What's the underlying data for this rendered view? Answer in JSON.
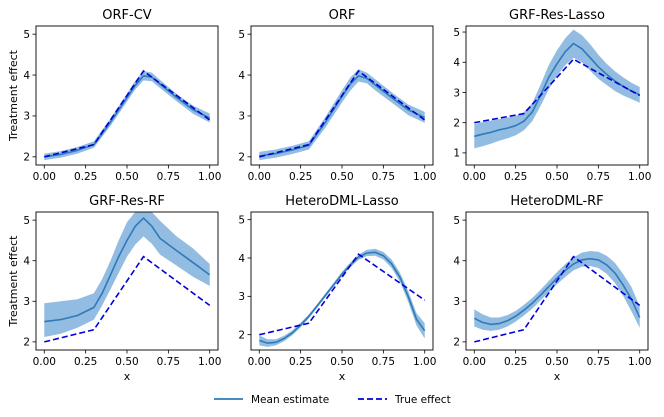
{
  "legend": {
    "mean_label": "Mean estimate",
    "true_label": "True effect"
  },
  "colors": {
    "estimate_line": "#2f7ab8",
    "band": "#7fb0dc",
    "true_effect": "#0000dd",
    "axes": "#000000"
  },
  "shared_axes": {
    "ylabel": "Treatment effect",
    "xlabel": "x",
    "xlim": [
      -0.05,
      1.05
    ],
    "xticks": [
      0.0,
      0.25,
      0.5,
      0.75,
      1.0
    ],
    "xtick_labels": [
      "0.00",
      "0.25",
      "0.50",
      "0.75",
      "1.00"
    ]
  },
  "chart_data": [
    {
      "type": "line",
      "title": "ORF-CV",
      "xlabel": "",
      "ylabel": "Treatment effect",
      "ylim": [
        1.8,
        5.2
      ],
      "yticks": [
        2,
        3,
        4,
        5
      ],
      "true_effect": {
        "x": [
          0,
          0.3,
          0.6,
          1.0
        ],
        "y": [
          2.0,
          2.3,
          4.1,
          2.9
        ]
      },
      "estimate": {
        "x": [
          0,
          0.1,
          0.2,
          0.3,
          0.4,
          0.5,
          0.55,
          0.6,
          0.65,
          0.7,
          0.8,
          0.9,
          1.0
        ],
        "y": [
          2.0,
          2.06,
          2.16,
          2.3,
          2.85,
          3.45,
          3.75,
          3.98,
          3.95,
          3.78,
          3.45,
          3.15,
          2.95
        ],
        "lower": [
          1.92,
          1.98,
          2.08,
          2.22,
          2.76,
          3.35,
          3.65,
          3.87,
          3.85,
          3.68,
          3.36,
          3.05,
          2.84
        ],
        "upper": [
          2.08,
          2.14,
          2.24,
          2.38,
          2.94,
          3.55,
          3.86,
          4.1,
          4.06,
          3.88,
          3.54,
          3.25,
          3.06
        ]
      }
    },
    {
      "type": "line",
      "title": "ORF",
      "xlabel": "",
      "ylabel": "",
      "ylim": [
        1.8,
        5.2
      ],
      "yticks": [
        2,
        3,
        4,
        5
      ],
      "true_effect": {
        "x": [
          0,
          0.3,
          0.6,
          1.0
        ],
        "y": [
          2.0,
          2.3,
          4.1,
          2.9
        ]
      },
      "estimate": {
        "x": [
          0,
          0.1,
          0.2,
          0.3,
          0.4,
          0.5,
          0.55,
          0.6,
          0.65,
          0.7,
          0.8,
          0.9,
          1.0
        ],
        "y": [
          2.02,
          2.08,
          2.17,
          2.28,
          2.85,
          3.48,
          3.78,
          3.98,
          3.92,
          3.76,
          3.45,
          3.15,
          2.96
        ],
        "lower": [
          1.92,
          1.98,
          2.07,
          2.18,
          2.72,
          3.33,
          3.62,
          3.84,
          3.8,
          3.63,
          3.33,
          3.02,
          2.83
        ],
        "upper": [
          2.12,
          2.18,
          2.27,
          2.38,
          2.98,
          3.63,
          3.94,
          4.14,
          4.06,
          3.9,
          3.58,
          3.28,
          3.1
        ]
      }
    },
    {
      "type": "line",
      "title": "GRF-Res-Lasso",
      "xlabel": "",
      "ylabel": "",
      "ylim": [
        0.6,
        5.2
      ],
      "yticks": [
        1,
        2,
        3,
        4,
        5
      ],
      "true_effect": {
        "x": [
          0,
          0.3,
          0.6,
          1.0
        ],
        "y": [
          2.0,
          2.3,
          4.1,
          2.9
        ]
      },
      "estimate": {
        "x": [
          0,
          0.05,
          0.1,
          0.15,
          0.2,
          0.25,
          0.3,
          0.35,
          0.4,
          0.45,
          0.5,
          0.55,
          0.6,
          0.65,
          0.7,
          0.75,
          0.8,
          0.85,
          0.9,
          0.95,
          1.0
        ],
        "y": [
          1.55,
          1.62,
          1.68,
          1.76,
          1.82,
          1.9,
          2.05,
          2.35,
          2.9,
          3.5,
          3.95,
          4.35,
          4.62,
          4.45,
          4.15,
          3.85,
          3.6,
          3.38,
          3.2,
          3.05,
          2.92
        ],
        "lower": [
          1.15,
          1.22,
          1.3,
          1.4,
          1.48,
          1.58,
          1.75,
          2.05,
          2.55,
          3.1,
          3.55,
          3.9,
          4.15,
          4.0,
          3.72,
          3.45,
          3.25,
          3.05,
          2.9,
          2.78,
          2.66
        ],
        "upper": [
          1.95,
          2.02,
          2.07,
          2.12,
          2.17,
          2.22,
          2.35,
          2.65,
          3.25,
          3.9,
          4.4,
          4.8,
          5.08,
          4.9,
          4.6,
          4.25,
          3.95,
          3.7,
          3.5,
          3.32,
          3.18
        ]
      }
    },
    {
      "type": "line",
      "title": "GRF-Res-RF",
      "xlabel": "x",
      "ylabel": "Treatment effect",
      "ylim": [
        1.8,
        5.2
      ],
      "yticks": [
        2,
        3,
        4,
        5
      ],
      "true_effect": {
        "x": [
          0,
          0.3,
          0.6,
          1.0
        ],
        "y": [
          2.0,
          2.3,
          4.1,
          2.9
        ]
      },
      "estimate": {
        "x": [
          0,
          0.1,
          0.2,
          0.3,
          0.35,
          0.4,
          0.45,
          0.5,
          0.55,
          0.6,
          0.65,
          0.7,
          0.8,
          0.9,
          1.0
        ],
        "y": [
          2.5,
          2.55,
          2.65,
          2.85,
          3.2,
          3.65,
          4.1,
          4.5,
          4.85,
          5.05,
          4.85,
          4.55,
          4.25,
          3.95,
          3.65
        ],
        "lower": [
          2.12,
          2.2,
          2.35,
          2.55,
          2.9,
          3.3,
          3.7,
          4.1,
          4.4,
          4.6,
          4.42,
          4.15,
          3.88,
          3.6,
          3.38
        ],
        "upper": [
          2.95,
          3.0,
          3.05,
          3.2,
          3.55,
          4.0,
          4.5,
          4.95,
          5.2,
          5.2,
          5.2,
          4.98,
          4.6,
          4.3,
          3.92
        ]
      }
    },
    {
      "type": "line",
      "title": "HeteroDML-Lasso",
      "xlabel": "x",
      "ylabel": "",
      "ylim": [
        1.6,
        5.2
      ],
      "yticks": [
        2,
        3,
        4,
        5
      ],
      "true_effect": {
        "x": [
          0,
          0.3,
          0.6,
          1.0
        ],
        "y": [
          2.0,
          2.3,
          4.1,
          2.9
        ]
      },
      "estimate": {
        "x": [
          0,
          0.05,
          0.1,
          0.15,
          0.2,
          0.25,
          0.3,
          0.35,
          0.4,
          0.45,
          0.5,
          0.55,
          0.6,
          0.65,
          0.7,
          0.75,
          0.8,
          0.85,
          0.9,
          0.95,
          1.0
        ],
        "y": [
          1.85,
          1.78,
          1.8,
          1.9,
          2.05,
          2.25,
          2.48,
          2.75,
          3.03,
          3.3,
          3.58,
          3.82,
          4.02,
          4.13,
          4.15,
          4.06,
          3.85,
          3.5,
          3.0,
          2.4,
          2.1
        ],
        "lower": [
          1.72,
          1.68,
          1.72,
          1.83,
          1.99,
          2.19,
          2.43,
          2.7,
          2.98,
          3.25,
          3.52,
          3.76,
          3.95,
          4.05,
          4.06,
          3.96,
          3.74,
          3.38,
          2.86,
          2.24,
          1.9
        ],
        "upper": [
          1.98,
          1.88,
          1.88,
          1.97,
          2.11,
          2.31,
          2.53,
          2.8,
          3.08,
          3.35,
          3.64,
          3.88,
          4.09,
          4.21,
          4.24,
          4.16,
          3.96,
          3.62,
          3.14,
          2.56,
          2.3
        ]
      }
    },
    {
      "type": "line",
      "title": "HeteroDML-RF",
      "xlabel": "x",
      "ylabel": "",
      "ylim": [
        1.8,
        5.2
      ],
      "yticks": [
        2,
        3,
        4,
        5
      ],
      "true_effect": {
        "x": [
          0,
          0.3,
          0.6,
          1.0
        ],
        "y": [
          2.0,
          2.3,
          4.1,
          2.9
        ]
      },
      "estimate": {
        "x": [
          0,
          0.05,
          0.1,
          0.15,
          0.2,
          0.25,
          0.3,
          0.35,
          0.4,
          0.45,
          0.5,
          0.55,
          0.6,
          0.65,
          0.7,
          0.75,
          0.8,
          0.85,
          0.9,
          0.95,
          1.0
        ],
        "y": [
          2.58,
          2.48,
          2.43,
          2.45,
          2.52,
          2.63,
          2.78,
          2.95,
          3.15,
          3.36,
          3.57,
          3.76,
          3.92,
          4.02,
          4.05,
          4.02,
          3.9,
          3.7,
          3.4,
          3.05,
          2.6
        ],
        "lower": [
          2.38,
          2.3,
          2.27,
          2.3,
          2.38,
          2.5,
          2.65,
          2.82,
          3.02,
          3.22,
          3.42,
          3.6,
          3.76,
          3.85,
          3.87,
          3.82,
          3.68,
          3.45,
          3.13,
          2.75,
          2.35
        ],
        "upper": [
          2.8,
          2.68,
          2.6,
          2.6,
          2.66,
          2.76,
          2.91,
          3.08,
          3.28,
          3.5,
          3.72,
          3.92,
          4.08,
          4.2,
          4.24,
          4.22,
          4.12,
          3.95,
          3.67,
          3.35,
          2.88
        ]
      }
    }
  ]
}
